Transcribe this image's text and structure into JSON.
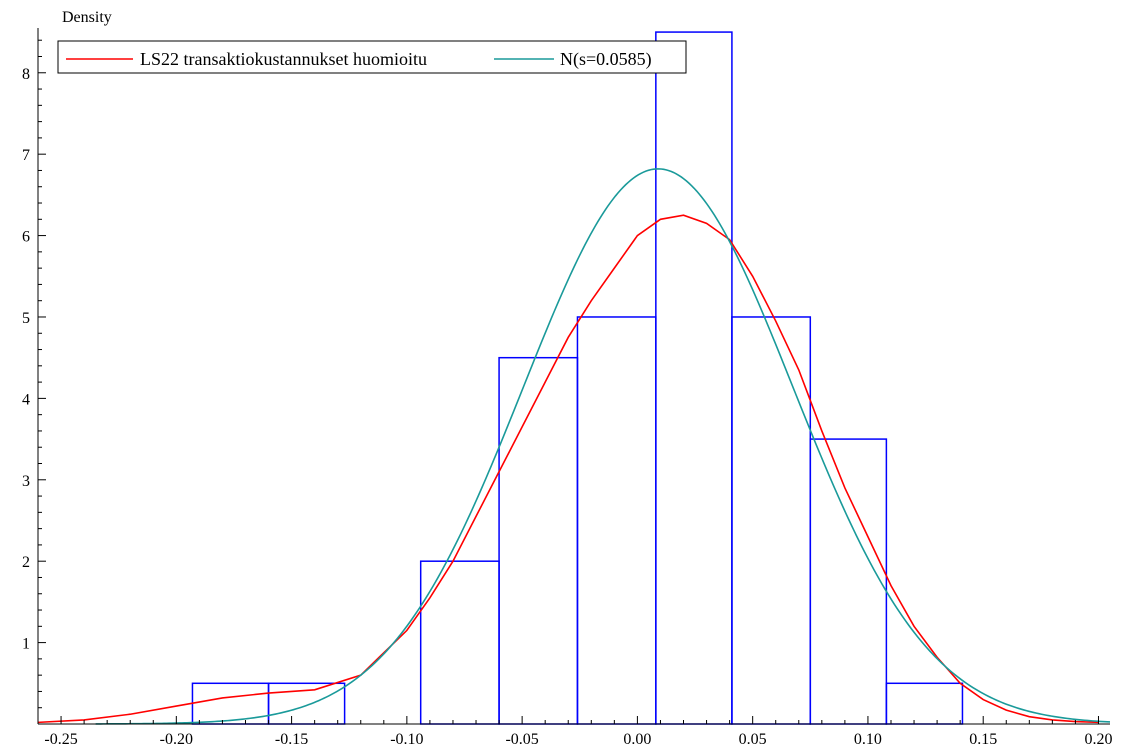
{
  "chart_data": {
    "type": "histogram-with-density",
    "ylabel": "Density",
    "xlabel": "",
    "xlim": [
      -0.26,
      0.205
    ],
    "ylim": [
      0,
      8.55
    ],
    "x_ticks": [
      -0.25,
      -0.2,
      -0.15,
      -0.1,
      -0.05,
      0.0,
      0.05,
      0.1,
      0.15,
      0.2
    ],
    "x_tick_labels": [
      "-0.25",
      "-0.20",
      "-0.15",
      "-0.10",
      "-0.05",
      "0.00",
      "0.05",
      "0.10",
      "0.15",
      "0.20"
    ],
    "y_ticks": [
      1,
      2,
      3,
      4,
      5,
      6,
      7,
      8
    ],
    "y_tick_labels": [
      "1",
      "2",
      "3",
      "4",
      "5",
      "6",
      "7",
      "8"
    ],
    "grid": false,
    "legend_placement": "top-left",
    "histogram": {
      "color": "#0000ff",
      "bins": [
        {
          "x0": -0.193,
          "x1": -0.16,
          "density": 0.5
        },
        {
          "x0": -0.16,
          "x1": -0.127,
          "density": 0.5
        },
        {
          "x0": -0.127,
          "x1": -0.094,
          "density": 0.0
        },
        {
          "x0": -0.094,
          "x1": -0.06,
          "density": 2.0
        },
        {
          "x0": -0.06,
          "x1": -0.026,
          "density": 4.5
        },
        {
          "x0": -0.026,
          "x1": 0.008,
          "density": 5.0
        },
        {
          "x0": 0.008,
          "x1": 0.041,
          "density": 8.5
        },
        {
          "x0": 0.041,
          "x1": 0.075,
          "density": 5.0
        },
        {
          "x0": 0.075,
          "x1": 0.108,
          "density": 3.5
        },
        {
          "x0": 0.108,
          "x1": 0.141,
          "density": 0.5
        }
      ]
    },
    "series": [
      {
        "name": "LS22 transaktiokustannukset huomioitu",
        "color": "#ff0000",
        "x": [
          -0.26,
          -0.24,
          -0.22,
          -0.2,
          -0.18,
          -0.16,
          -0.14,
          -0.12,
          -0.1,
          -0.09,
          -0.08,
          -0.07,
          -0.06,
          -0.05,
          -0.04,
          -0.03,
          -0.02,
          -0.01,
          0.0,
          0.01,
          0.02,
          0.03,
          0.04,
          0.05,
          0.06,
          0.07,
          0.08,
          0.09,
          0.1,
          0.11,
          0.12,
          0.13,
          0.14,
          0.15,
          0.16,
          0.17,
          0.18,
          0.19,
          0.2
        ],
        "y": [
          0.02,
          0.05,
          0.12,
          0.22,
          0.32,
          0.38,
          0.42,
          0.6,
          1.15,
          1.55,
          2.0,
          2.55,
          3.1,
          3.65,
          4.2,
          4.75,
          5.2,
          5.6,
          6.0,
          6.2,
          6.25,
          6.15,
          5.95,
          5.5,
          4.95,
          4.35,
          3.6,
          2.9,
          2.3,
          1.7,
          1.2,
          0.82,
          0.5,
          0.3,
          0.17,
          0.09,
          0.05,
          0.03,
          0.02
        ]
      },
      {
        "name": "N(s=0.0585)",
        "color": "#1a9a9a",
        "mean": 0.009,
        "sd": 0.0585
      }
    ]
  }
}
